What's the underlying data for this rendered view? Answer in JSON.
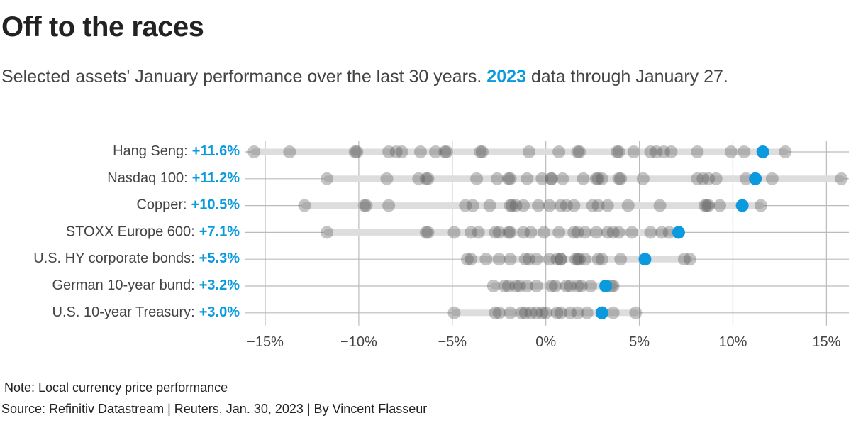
{
  "chart_data": {
    "type": "dot",
    "title": "Off to the races",
    "subtitle": [
      "Selected assets' January performance over the last 30 years. ",
      "2023",
      " data through January 27."
    ],
    "categories": [
      "Hang Seng:",
      "Nasdaq 100:",
      "Copper:",
      "STOXX Europe 600:",
      "U.S. HY corporate bonds:",
      "German 10-year bund:",
      "U.S. 10-year Treasury:"
    ],
    "values": [
      11.6,
      11.2,
      10.5,
      7.1,
      5.3,
      3.2,
      3.0
    ],
    "value_labels": [
      "+11.6%",
      "+11.2%",
      "+10.5%",
      "+7.1%",
      "+5.3%",
      "+3.2%",
      "+3.0%"
    ],
    "history": [
      [
        -15.6,
        -13.7,
        -10.2,
        -10.1,
        -8.4,
        -8.0,
        -7.7,
        -6.7,
        -5.9,
        -5.4,
        -5.3,
        -3.5,
        -3.4,
        -0.9,
        0.7,
        1.7,
        1.8,
        3.8,
        3.9,
        4.7,
        5.6,
        5.9,
        6.3,
        6.7,
        8.1,
        9.9,
        10.6,
        12.8
      ],
      [
        -11.7,
        -8.5,
        -6.8,
        -6.4,
        -6.3,
        -3.7,
        -2.6,
        -2.0,
        -1.9,
        -1.0,
        -0.2,
        0.3,
        0.3,
        0.9,
        2.0,
        2.7,
        2.8,
        3.0,
        3.9,
        4.0,
        5.2,
        8.1,
        8.4,
        8.7,
        9.1,
        10.7,
        12.1,
        15.8
      ],
      [
        -12.9,
        -9.7,
        -9.6,
        -8.4,
        -4.3,
        -3.9,
        -3.0,
        -1.9,
        -1.8,
        -1.6,
        -1.2,
        -0.4,
        0.2,
        0.8,
        1.1,
        1.5,
        2.5,
        2.8,
        3.3,
        4.4,
        6.1,
        8.5,
        8.6,
        8.7,
        9.3,
        11.5
      ],
      [
        -11.7,
        -6.4,
        -6.3,
        -4.9,
        -4.0,
        -3.6,
        -2.7,
        -2.5,
        -2.0,
        -1.9,
        -1.2,
        -0.8,
        -0.1,
        0.7,
        1.5,
        1.7,
        2.1,
        2.7,
        3.3,
        3.6,
        3.9,
        4.6,
        5.6,
        6.2,
        6.6
      ],
      [
        -4.2,
        -4.0,
        -3.2,
        -2.5,
        -1.9,
        -1.1,
        -0.9,
        -0.5,
        0.2,
        0.6,
        0.8,
        0.8,
        1.6,
        1.7,
        1.8,
        2.1,
        2.8,
        3.0,
        4.0,
        7.4,
        7.7
      ],
      [
        -2.8,
        -2.2,
        -2.0,
        -1.6,
        -1.4,
        -1.0,
        -0.5,
        0.3,
        0.5,
        1.1,
        1.3,
        1.7,
        1.9,
        2.4,
        3.5,
        3.6
      ],
      [
        -4.9,
        -2.7,
        -2.5,
        -1.9,
        -1.3,
        -1.1,
        -0.8,
        -0.5,
        -0.2,
        0.0,
        0.6,
        0.8,
        1.3,
        1.7,
        2.2,
        3.0,
        3.6,
        4.8
      ]
    ],
    "xlim": [
      -16.1,
      16.2
    ],
    "xticks": [
      {
        "value": -15,
        "label": "−15%"
      },
      {
        "value": -10,
        "label": "−10%"
      },
      {
        "value": -5,
        "label": "−5%"
      },
      {
        "value": 0,
        "label": "0%"
      },
      {
        "value": 5,
        "label": "5%"
      },
      {
        "value": 10,
        "label": "10%"
      },
      {
        "value": 15,
        "label": "15%"
      }
    ],
    "grid": true,
    "color": "#0c9ade",
    "history_color": "#555555",
    "note": "Note: Local currency price performance",
    "source": "Source: Refinitiv Datastream | Reuters, Jan. 30, 2023 | By Vincent Flasseur"
  }
}
